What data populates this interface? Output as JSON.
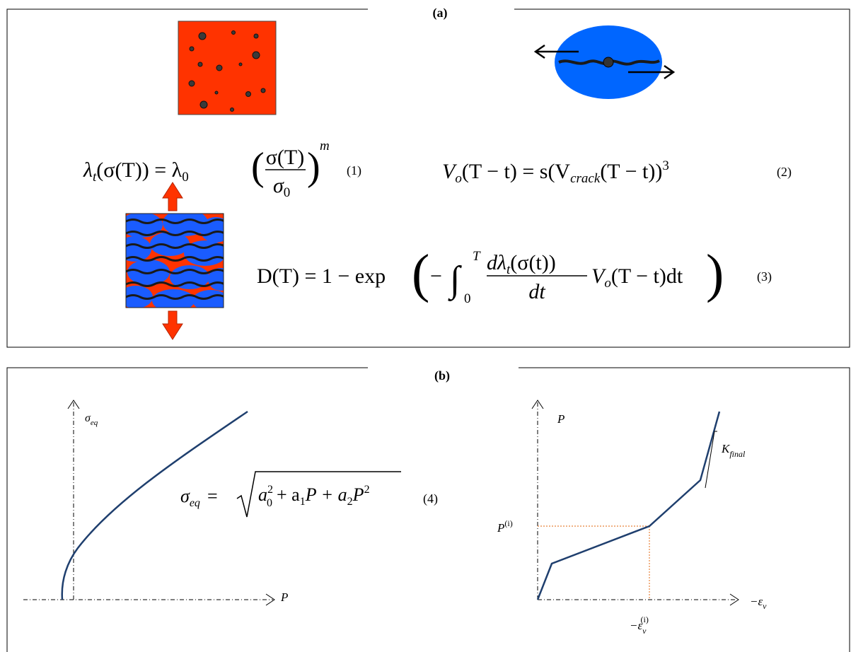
{
  "panel_a": {
    "label": "(a)",
    "eq1": {
      "parts": [
        "λ",
        "t",
        "(σ(T)) = λ",
        "0",
        "(",
        "σ(T)",
        "σ",
        "0",
        ")",
        "m"
      ],
      "number": "(1)"
    },
    "eq2": {
      "parts": [
        "V",
        "o",
        "(T − t) = s(V",
        "crack",
        "(T − t))",
        "3"
      ],
      "number": "(2)"
    },
    "eq3": {
      "parts": [
        "D(T) = 1 − exp",
        "(",
        "−",
        "∫",
        "T",
        "0",
        "dλ",
        "t",
        "(σ(t))",
        "dt",
        "V",
        "o",
        "(T − t)dt",
        ")"
      ],
      "number": "(3)"
    }
  },
  "panel_b": {
    "label": "(b)",
    "left": {
      "y_label": [
        "σ",
        "eq"
      ],
      "x_label": "P",
      "eq4": {
        "parts": [
          "σ",
          "eq",
          "=",
          "a",
          "2",
          "0",
          "+ a",
          "1",
          "P + a",
          "2",
          "P",
          "2"
        ],
        "number": "(4)"
      }
    },
    "right": {
      "y_label": "P",
      "x_label": [
        "−ε",
        "v"
      ],
      "p_i": [
        "P",
        "(i)"
      ],
      "eps_i": [
        "−ε",
        "v",
        "(i)"
      ],
      "k_final": [
        "K",
        "final"
      ]
    }
  }
}
